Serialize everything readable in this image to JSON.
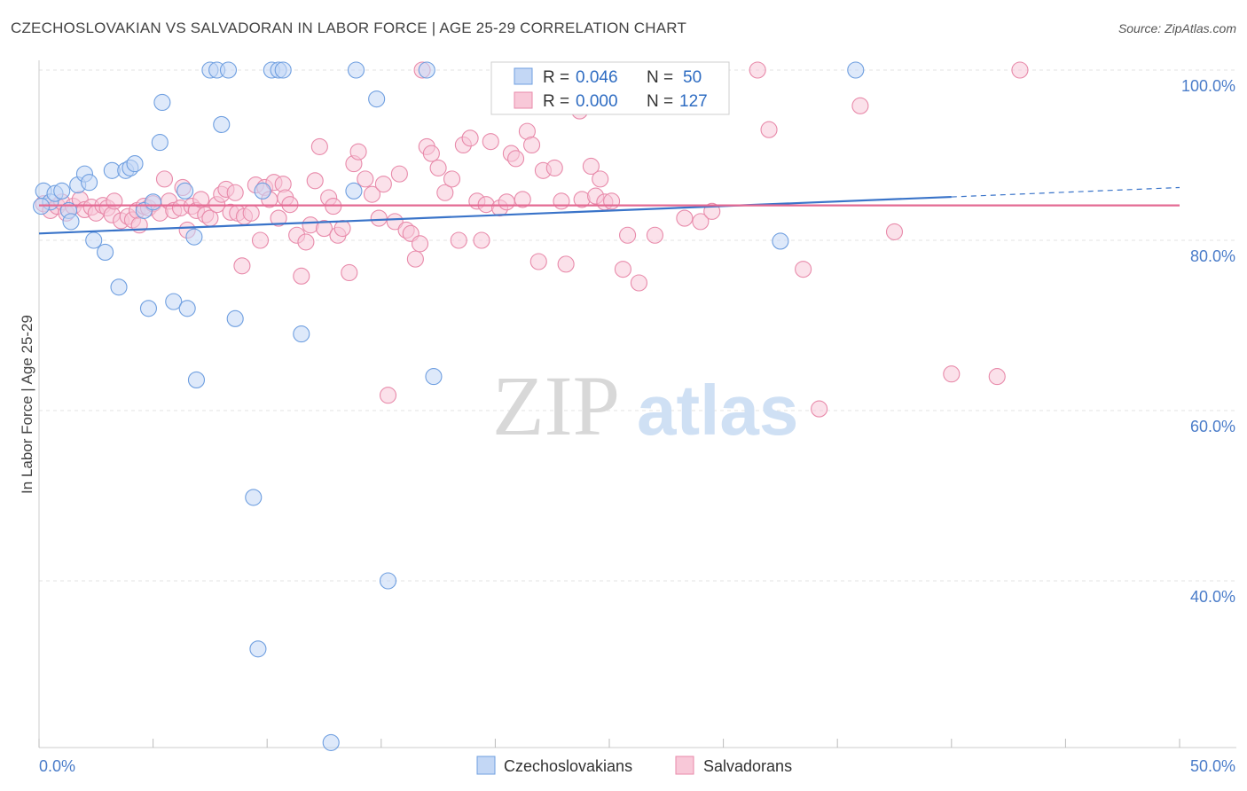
{
  "title": "CZECHOSLOVAKIAN VS SALVADORAN IN LABOR FORCE | AGE 25-29 CORRELATION CHART",
  "source": "Source: ZipAtlas.com",
  "watermark": {
    "zip": "ZIP",
    "atlas": "atlas"
  },
  "colors": {
    "blue": "#6f9fe0",
    "blue_fill": "#c3d7f5",
    "blue_line": "#3a74c9",
    "pink": "#e88aaa",
    "pink_fill": "#f8c8d8",
    "pink_line": "#e46a93",
    "grid": "#e3e3e3",
    "tick_text": "#4a7cc9"
  },
  "legend": {
    "rows": [
      {
        "r_label": "R =",
        "r_value": "0.046",
        "n_label": "N =",
        "n_value": "50"
      },
      {
        "r_label": "R =",
        "r_value": "0.000",
        "n_label": "N =",
        "n_value": "127"
      }
    ]
  },
  "chart_data": {
    "type": "scatter",
    "ylabel": "In Labor Force | Age 25-29",
    "xlim": [
      0,
      50
    ],
    "ylim": [
      20,
      103
    ],
    "x_tick_labels": [
      {
        "value": 0,
        "label": "0.0%"
      },
      {
        "value": 50,
        "label": "50.0%"
      }
    ],
    "y_tick_labels": [
      {
        "value": 40,
        "label": "40.0%"
      },
      {
        "value": 60,
        "label": "60.0%"
      },
      {
        "value": 80,
        "label": "80.0%"
      },
      {
        "value": 100,
        "label": "100.0%"
      }
    ],
    "x_minor_ticks": [
      0,
      5,
      10,
      15,
      20,
      25,
      30,
      35,
      40,
      45,
      50
    ],
    "grid": true,
    "legend_position": "top-center",
    "series": [
      {
        "name": "Czechoslovakians",
        "color": "#6f9fe0",
        "trend": {
          "x0": 0,
          "y0": 80.8,
          "x1": 40,
          "y1": 85.1,
          "dash_to_x": 50,
          "dash_to_y": 86.2
        },
        "points": [
          [
            0.2,
            85.8
          ],
          [
            0.5,
            84.5
          ],
          [
            0.7,
            85.5
          ],
          [
            1.0,
            85.8
          ],
          [
            1.3,
            83.5
          ],
          [
            1.4,
            82.2
          ],
          [
            1.7,
            86.5
          ],
          [
            2.0,
            87.8
          ],
          [
            2.2,
            86.8
          ],
          [
            2.4,
            80.0
          ],
          [
            2.9,
            78.6
          ],
          [
            3.2,
            88.2
          ],
          [
            3.5,
            74.5
          ],
          [
            3.8,
            88.2
          ],
          [
            4.0,
            88.5
          ],
          [
            4.2,
            89.0
          ],
          [
            4.6,
            83.5
          ],
          [
            4.8,
            72.0
          ],
          [
            5.0,
            84.5
          ],
          [
            5.3,
            91.5
          ],
          [
            5.4,
            96.2
          ],
          [
            5.9,
            72.8
          ],
          [
            6.4,
            85.8
          ],
          [
            6.5,
            72.0
          ],
          [
            6.8,
            80.4
          ],
          [
            6.9,
            63.6
          ],
          [
            7.5,
            100.0
          ],
          [
            7.8,
            100.0
          ],
          [
            8.0,
            93.6
          ],
          [
            8.3,
            100.0
          ],
          [
            8.6,
            70.8
          ],
          [
            9.4,
            49.8
          ],
          [
            9.6,
            32.0
          ],
          [
            9.8,
            85.8
          ],
          [
            10.2,
            100.0
          ],
          [
            10.5,
            100.0
          ],
          [
            10.7,
            100.0
          ],
          [
            11.5,
            69.0
          ],
          [
            12.8,
            21.0
          ],
          [
            13.8,
            85.8
          ],
          [
            13.9,
            100.0
          ],
          [
            14.8,
            96.6
          ],
          [
            15.3,
            40.0
          ],
          [
            17.0,
            100.0
          ],
          [
            17.3,
            64.0
          ],
          [
            20.3,
            100.0
          ],
          [
            24.8,
            100.0
          ],
          [
            32.5,
            79.9
          ],
          [
            35.8,
            100.0
          ],
          [
            0.1,
            84.0
          ]
        ]
      },
      {
        "name": "Salvadorans",
        "color": "#e88aaa",
        "trend": {
          "x0": 0,
          "y0": 84.1,
          "x1": 50,
          "y1": 84.1
        },
        "points": [
          [
            0.2,
            84.3
          ],
          [
            0.5,
            83.5
          ],
          [
            0.8,
            84.0
          ],
          [
            1.0,
            84.5
          ],
          [
            1.2,
            83.2
          ],
          [
            1.5,
            84.0
          ],
          [
            1.8,
            84.8
          ],
          [
            2.0,
            83.6
          ],
          [
            2.3,
            83.9
          ],
          [
            2.5,
            83.2
          ],
          [
            2.8,
            84.1
          ],
          [
            3.0,
            83.8
          ],
          [
            3.2,
            83.0
          ],
          [
            3.3,
            84.6
          ],
          [
            3.6,
            82.3
          ],
          [
            3.9,
            82.8
          ],
          [
            4.1,
            82.4
          ],
          [
            4.3,
            83.5
          ],
          [
            4.4,
            81.8
          ],
          [
            4.6,
            84.0
          ],
          [
            4.8,
            83.8
          ],
          [
            5.0,
            84.3
          ],
          [
            5.3,
            83.2
          ],
          [
            5.5,
            87.2
          ],
          [
            5.7,
            84.6
          ],
          [
            5.9,
            83.5
          ],
          [
            6.2,
            83.8
          ],
          [
            6.3,
            86.2
          ],
          [
            6.5,
            81.2
          ],
          [
            6.7,
            84.0
          ],
          [
            6.9,
            83.5
          ],
          [
            7.1,
            84.8
          ],
          [
            7.3,
            83.0
          ],
          [
            7.5,
            82.6
          ],
          [
            7.8,
            84.2
          ],
          [
            8.0,
            85.4
          ],
          [
            8.2,
            86.0
          ],
          [
            8.4,
            83.3
          ],
          [
            8.6,
            85.6
          ],
          [
            8.7,
            83.2
          ],
          [
            8.9,
            77.0
          ],
          [
            9.0,
            82.8
          ],
          [
            9.3,
            83.2
          ],
          [
            9.5,
            86.5
          ],
          [
            9.7,
            80.0
          ],
          [
            9.9,
            86.2
          ],
          [
            10.1,
            84.8
          ],
          [
            10.3,
            86.8
          ],
          [
            10.5,
            82.6
          ],
          [
            10.7,
            86.6
          ],
          [
            10.8,
            85.0
          ],
          [
            11.0,
            84.2
          ],
          [
            11.3,
            80.6
          ],
          [
            11.5,
            75.8
          ],
          [
            11.7,
            79.8
          ],
          [
            11.9,
            81.8
          ],
          [
            12.1,
            87.0
          ],
          [
            12.3,
            91.0
          ],
          [
            12.5,
            81.4
          ],
          [
            12.7,
            85.0
          ],
          [
            12.9,
            84.0
          ],
          [
            13.1,
            80.6
          ],
          [
            13.3,
            81.4
          ],
          [
            13.6,
            76.2
          ],
          [
            13.8,
            89.0
          ],
          [
            14.0,
            90.4
          ],
          [
            14.3,
            87.2
          ],
          [
            14.6,
            85.4
          ],
          [
            14.9,
            82.6
          ],
          [
            15.1,
            86.6
          ],
          [
            15.3,
            61.8
          ],
          [
            15.6,
            82.2
          ],
          [
            15.8,
            87.8
          ],
          [
            16.1,
            81.2
          ],
          [
            16.3,
            80.8
          ],
          [
            16.5,
            77.8
          ],
          [
            16.7,
            79.6
          ],
          [
            17.0,
            91.0
          ],
          [
            17.2,
            90.2
          ],
          [
            17.5,
            88.5
          ],
          [
            17.8,
            85.6
          ],
          [
            18.1,
            87.2
          ],
          [
            18.4,
            80.0
          ],
          [
            18.6,
            91.2
          ],
          [
            18.9,
            92.0
          ],
          [
            19.2,
            84.6
          ],
          [
            19.4,
            80.0
          ],
          [
            19.6,
            84.2
          ],
          [
            19.8,
            91.6
          ],
          [
            20.2,
            83.8
          ],
          [
            20.5,
            84.5
          ],
          [
            20.7,
            90.2
          ],
          [
            20.9,
            89.6
          ],
          [
            21.2,
            84.8
          ],
          [
            21.4,
            92.8
          ],
          [
            21.6,
            91.2
          ],
          [
            21.9,
            77.5
          ],
          [
            22.1,
            88.2
          ],
          [
            22.6,
            88.5
          ],
          [
            22.9,
            84.6
          ],
          [
            23.1,
            77.2
          ],
          [
            23.8,
            84.8
          ],
          [
            24.2,
            88.7
          ],
          [
            24.4,
            85.2
          ],
          [
            24.6,
            87.2
          ],
          [
            24.8,
            84.5
          ],
          [
            25.1,
            84.6
          ],
          [
            25.6,
            76.6
          ],
          [
            25.8,
            80.6
          ],
          [
            26.3,
            75.0
          ],
          [
            27.0,
            80.6
          ],
          [
            28.3,
            82.6
          ],
          [
            29.0,
            82.2
          ],
          [
            29.5,
            83.4
          ],
          [
            31.5,
            100.0
          ],
          [
            32.0,
            93.0
          ],
          [
            33.5,
            76.6
          ],
          [
            34.2,
            60.2
          ],
          [
            36.0,
            95.8
          ],
          [
            37.5,
            81.0
          ],
          [
            40.0,
            64.3
          ],
          [
            42.0,
            64.0
          ],
          [
            43.0,
            100.0
          ],
          [
            21.6,
            100.0
          ],
          [
            25.5,
            100.0
          ],
          [
            16.8,
            100.0
          ],
          [
            23.7,
            95.2
          ]
        ]
      }
    ]
  },
  "bottom_legend": [
    {
      "label": "Czechoslovakians"
    },
    {
      "label": "Salvadorans"
    }
  ]
}
